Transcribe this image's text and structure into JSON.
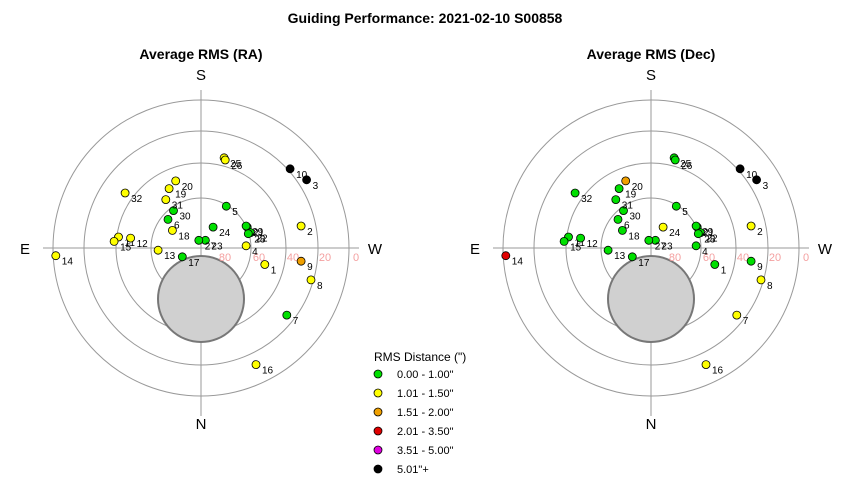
{
  "title": "Guiding Performance: 2021-02-10 S00858",
  "chart_data": [
    {
      "type": "scatter",
      "projection": "polar",
      "title": "Average RMS (RA)",
      "directions": {
        "top": "S",
        "bottom": "N",
        "left": "E",
        "right": "W"
      },
      "altitude_ticks": [
        "80",
        "60",
        "40",
        "20",
        "0"
      ],
      "points": [
        {
          "label": "1",
          "x": 0.58,
          "y": 0.15,
          "cls": 1
        },
        {
          "label": "2",
          "x": 0.91,
          "y": -0.2,
          "cls": 1
        },
        {
          "label": "3",
          "x": 0.96,
          "y": -0.62,
          "cls": 5
        },
        {
          "label": "4",
          "x": 0.41,
          "y": -0.02,
          "cls": 1
        },
        {
          "label": "5",
          "x": 0.23,
          "y": -0.38,
          "cls": 0
        },
        {
          "label": "6",
          "x": -0.3,
          "y": -0.26,
          "cls": 0
        },
        {
          "label": "7",
          "x": 0.78,
          "y": 0.61,
          "cls": 0
        },
        {
          "label": "8",
          "x": 1.0,
          "y": 0.29,
          "cls": 1
        },
        {
          "label": "9",
          "x": 0.91,
          "y": 0.12,
          "cls": 2
        },
        {
          "label": "10",
          "x": 0.81,
          "y": -0.72,
          "cls": 5
        },
        {
          "label": "11",
          "x": -0.75,
          "y": -0.1,
          "cls": 1
        },
        {
          "label": "12",
          "x": -0.64,
          "y": -0.09,
          "cls": 1
        },
        {
          "label": "13",
          "x": -0.39,
          "y": 0.02,
          "cls": 1
        },
        {
          "label": "14",
          "x": -1.32,
          "y": 0.07,
          "cls": 1
        },
        {
          "label": "15",
          "x": -0.79,
          "y": -0.06,
          "cls": 1
        },
        {
          "label": "16",
          "x": 0.5,
          "y": 1.06,
          "cls": 1
        },
        {
          "label": "17",
          "x": -0.17,
          "y": 0.08,
          "cls": 0
        },
        {
          "label": "18",
          "x": -0.26,
          "y": -0.16,
          "cls": 1
        },
        {
          "label": "19",
          "x": -0.29,
          "y": -0.54,
          "cls": 1
        },
        {
          "label": "20",
          "x": -0.23,
          "y": -0.61,
          "cls": 1
        },
        {
          "label": "21",
          "x": 0.42,
          "y": -0.19,
          "cls": 0
        },
        {
          "label": "22",
          "x": 0.45,
          "y": -0.14,
          "cls": 0
        },
        {
          "label": "23",
          "x": 0.04,
          "y": -0.07,
          "cls": 0
        },
        {
          "label": "24",
          "x": 0.11,
          "y": -0.19,
          "cls": 0
        },
        {
          "label": "25",
          "x": 0.21,
          "y": -0.82,
          "cls": 1
        },
        {
          "label": "26",
          "x": 0.22,
          "y": -0.8,
          "cls": 1
        },
        {
          "label": "27",
          "x": -0.02,
          "y": -0.07,
          "cls": 0
        },
        {
          "label": "28",
          "x": 0.43,
          "y": -0.13,
          "cls": 0
        },
        {
          "label": "29",
          "x": 0.41,
          "y": -0.2,
          "cls": 0
        },
        {
          "label": "30",
          "x": -0.25,
          "y": -0.34,
          "cls": 0
        },
        {
          "label": "31",
          "x": -0.32,
          "y": -0.44,
          "cls": 1
        },
        {
          "label": "32",
          "x": -0.69,
          "y": -0.5,
          "cls": 1
        }
      ]
    },
    {
      "type": "scatter",
      "projection": "polar",
      "title": "Average RMS (Dec)",
      "directions": {
        "top": "S",
        "bottom": "N",
        "left": "E",
        "right": "W"
      },
      "altitude_ticks": [
        "80",
        "60",
        "40",
        "20",
        "0"
      ],
      "points": [
        {
          "label": "1",
          "x": 0.58,
          "y": 0.15,
          "cls": 0
        },
        {
          "label": "2",
          "x": 0.91,
          "y": -0.2,
          "cls": 1
        },
        {
          "label": "3",
          "x": 0.96,
          "y": -0.62,
          "cls": 5
        },
        {
          "label": "4",
          "x": 0.41,
          "y": -0.02,
          "cls": 0
        },
        {
          "label": "5",
          "x": 0.23,
          "y": -0.38,
          "cls": 0
        },
        {
          "label": "6",
          "x": -0.3,
          "y": -0.26,
          "cls": 0
        },
        {
          "label": "7",
          "x": 0.78,
          "y": 0.61,
          "cls": 1
        },
        {
          "label": "8",
          "x": 1.0,
          "y": 0.29,
          "cls": 1
        },
        {
          "label": "9",
          "x": 0.91,
          "y": 0.12,
          "cls": 0
        },
        {
          "label": "10",
          "x": 0.81,
          "y": -0.72,
          "cls": 5
        },
        {
          "label": "11",
          "x": -0.75,
          "y": -0.1,
          "cls": 0
        },
        {
          "label": "12",
          "x": -0.64,
          "y": -0.09,
          "cls": 0
        },
        {
          "label": "13",
          "x": -0.39,
          "y": 0.02,
          "cls": 0
        },
        {
          "label": "14",
          "x": -1.32,
          "y": 0.07,
          "cls": 3
        },
        {
          "label": "15",
          "x": -0.79,
          "y": -0.06,
          "cls": 0
        },
        {
          "label": "16",
          "x": 0.5,
          "y": 1.06,
          "cls": 1
        },
        {
          "label": "17",
          "x": -0.17,
          "y": 0.08,
          "cls": 0
        },
        {
          "label": "18",
          "x": -0.26,
          "y": -0.16,
          "cls": 0
        },
        {
          "label": "19",
          "x": -0.29,
          "y": -0.54,
          "cls": 0
        },
        {
          "label": "20",
          "x": -0.23,
          "y": -0.61,
          "cls": 2
        },
        {
          "label": "21",
          "x": 0.42,
          "y": -0.19,
          "cls": 0
        },
        {
          "label": "22",
          "x": 0.45,
          "y": -0.14,
          "cls": 0
        },
        {
          "label": "23",
          "x": 0.04,
          "y": -0.07,
          "cls": 0
        },
        {
          "label": "24",
          "x": 0.11,
          "y": -0.19,
          "cls": 1
        },
        {
          "label": "25",
          "x": 0.21,
          "y": -0.82,
          "cls": 0
        },
        {
          "label": "26",
          "x": 0.22,
          "y": -0.8,
          "cls": 0
        },
        {
          "label": "27",
          "x": -0.02,
          "y": -0.07,
          "cls": 0
        },
        {
          "label": "28",
          "x": 0.43,
          "y": -0.13,
          "cls": 0
        },
        {
          "label": "29",
          "x": 0.41,
          "y": -0.2,
          "cls": 0
        },
        {
          "label": "30",
          "x": -0.25,
          "y": -0.34,
          "cls": 0
        },
        {
          "label": "31",
          "x": -0.32,
          "y": -0.44,
          "cls": 0
        },
        {
          "label": "32",
          "x": -0.69,
          "y": -0.5,
          "cls": 0
        }
      ]
    }
  ],
  "legend": {
    "title": "RMS Distance (\")",
    "items": [
      {
        "label": "0.00 - 1.00\"",
        "color": "#00e000"
      },
      {
        "label": "1.01 - 1.50\"",
        "color": "#ffff00"
      },
      {
        "label": "1.51 - 2.00\"",
        "color": "#f0a000"
      },
      {
        "label": "2.01 - 3.50\"",
        "color": "#e00000"
      },
      {
        "label": "3.51 - 5.00\"",
        "color": "#e000e0"
      },
      {
        "label": "5.01\"+",
        "color": "#000000"
      }
    ]
  }
}
